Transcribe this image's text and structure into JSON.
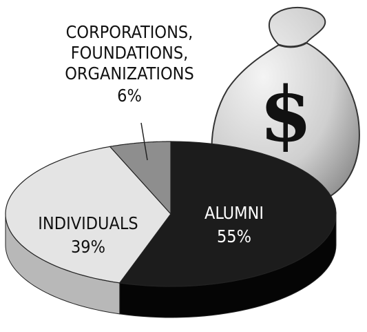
{
  "chart_data": {
    "type": "pie",
    "categories": [
      "ALUMNI",
      "INDIVIDUALS",
      "CORPORATIONS, FOUNDATIONS, ORGANIZATIONS"
    ],
    "values": [
      55,
      39,
      6
    ],
    "value_labels": [
      "55%",
      "39%",
      "6%"
    ],
    "colors": [
      "#1c1c1c",
      "#e4e4e4",
      "#8e8e8e"
    ],
    "annotation": "$"
  }
}
